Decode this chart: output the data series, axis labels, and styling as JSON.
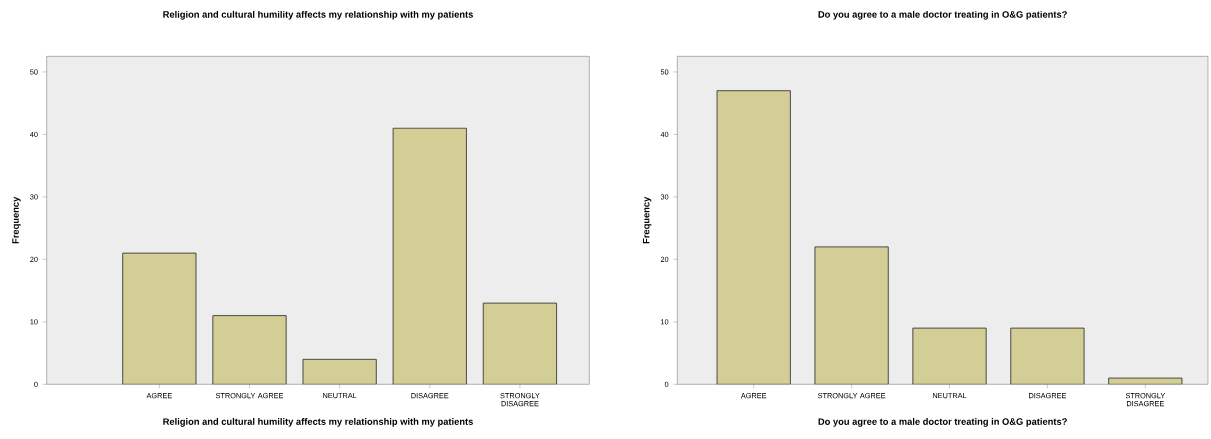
{
  "chart_data": [
    {
      "type": "bar",
      "title": "Religion and cultural humility affects my relationship with my patients",
      "xlabel": "Religion and cultural humility affects my relationship with my patients",
      "ylabel": "Frequency",
      "categories": [
        "AGREE",
        "STRONGLY AGREE",
        "NEUTRAL",
        "DISAGREE",
        "STRONGLY DISAGREE"
      ],
      "values": [
        21,
        11,
        4,
        41,
        13
      ],
      "color": "#d3cd96",
      "ylim": [
        0,
        52.5
      ],
      "yticks": [
        0,
        10,
        20,
        30,
        40,
        50
      ],
      "grid": false
    },
    {
      "type": "bar",
      "title": "Do you agree to a male doctor treating in O&G patients?",
      "xlabel": "Do you agree to a male doctor treating in O&G patients?",
      "ylabel": "Frequency",
      "categories": [
        "AGREE",
        "STRONGLY AGREE",
        "NEUTRAL",
        "DISAGREE",
        "STRONGLY DISAGREE"
      ],
      "values": [
        47,
        22,
        9,
        9,
        1
      ],
      "color": "#d3cd96",
      "ylim": [
        0,
        52.5
      ],
      "yticks": [
        0,
        10,
        20,
        30,
        40,
        50
      ],
      "grid": false
    }
  ]
}
